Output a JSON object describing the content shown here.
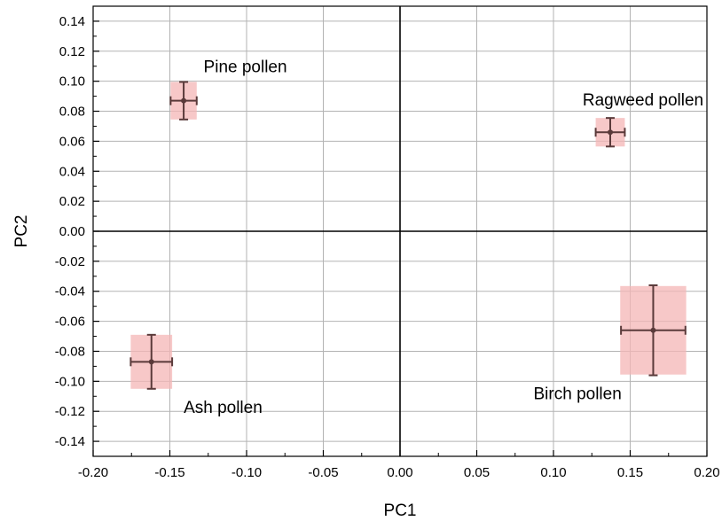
{
  "chart_data": {
    "type": "scatter",
    "title": "",
    "xlabel": "PC1",
    "ylabel": "PC2",
    "xlim": [
      -0.2,
      0.2
    ],
    "ylim": [
      -0.15,
      0.15
    ],
    "grid": true,
    "x_ticks": [
      "-0.20",
      "-0.15",
      "-0.10",
      "-0.05",
      "0.00",
      "0.05",
      "0.10",
      "0.15",
      "0.20"
    ],
    "y_ticks": [
      "0.14",
      "0.12",
      "0.10",
      "0.08",
      "0.06",
      "0.04",
      "0.02",
      "0.00",
      "-0.02",
      "-0.04",
      "-0.06",
      "-0.08",
      "-0.10",
      "-0.12",
      "-0.14"
    ],
    "points": [
      {
        "x": -0.141,
        "y": 0.087,
        "x_err": 0.0085,
        "y_err": 0.0125,
        "box_x_err": 0.0085,
        "box_y_err": 0.0125
      },
      {
        "x": 0.137,
        "y": 0.066,
        "x_err": 0.0095,
        "y_err": 0.0095,
        "box_x_err": 0.0095,
        "box_y_err": 0.0095
      },
      {
        "x": -0.162,
        "y": -0.087,
        "x_err": 0.0135,
        "y_err": 0.018,
        "box_x_err": 0.0135,
        "box_y_err": 0.018
      },
      {
        "x": 0.165,
        "y": -0.066,
        "x_err": 0.021,
        "y_err": 0.03,
        "box_x_err": 0.0215,
        "box_y_err": 0.0295
      }
    ],
    "annotations": [
      {
        "text": "Pine pollen",
        "x": -0.128,
        "y": 0.106
      },
      {
        "text": "Ragweed pollen",
        "x": 0.119,
        "y": 0.084
      },
      {
        "text": "Ash pollen",
        "x": -0.141,
        "y": -0.121
      },
      {
        "text": "Birch pollen",
        "x": 0.087,
        "y": -0.112
      }
    ],
    "colors": {
      "marker": "#5a3a3a",
      "box_fill": "#f4b5b5",
      "grid": "#b3b3b3",
      "axis": "#000000"
    }
  }
}
